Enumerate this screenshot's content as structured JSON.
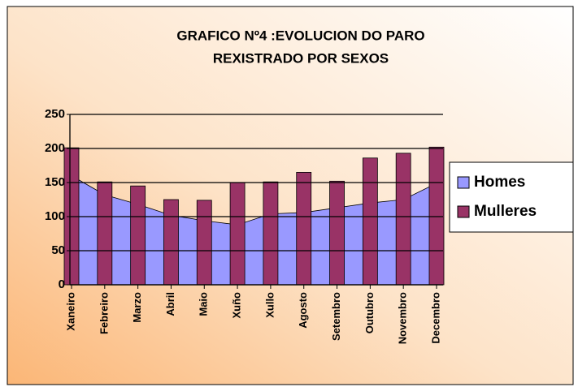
{
  "chart_data": {
    "type": "area-bar",
    "title": [
      "GRAFICO Nº4 :EVOLUCION DO PARO",
      "REXISTRADO POR SEXOS"
    ],
    "categories": [
      "Xaneiro",
      "Febreiro",
      "Marzo",
      "Abril",
      "Maio",
      "Xuño",
      "Xullo",
      "Agosto",
      "Setembro",
      "Outubro",
      "Novembro",
      "Decembro"
    ],
    "series": [
      {
        "name": "Homes",
        "type": "area",
        "color": "#9999ff",
        "values": [
          160,
          132,
          118,
          102,
          94,
          88,
          104,
          106,
          113,
          120,
          125,
          149
        ]
      },
      {
        "name": "Mulleres",
        "type": "bar",
        "color": "#993366",
        "values": [
          201,
          151,
          145,
          125,
          124,
          150,
          151,
          165,
          152,
          186,
          193,
          202
        ]
      }
    ],
    "ylim": [
      0,
      250
    ],
    "yticks": [
      0,
      50,
      100,
      150,
      200,
      250
    ],
    "grid": true,
    "legend": "right"
  }
}
